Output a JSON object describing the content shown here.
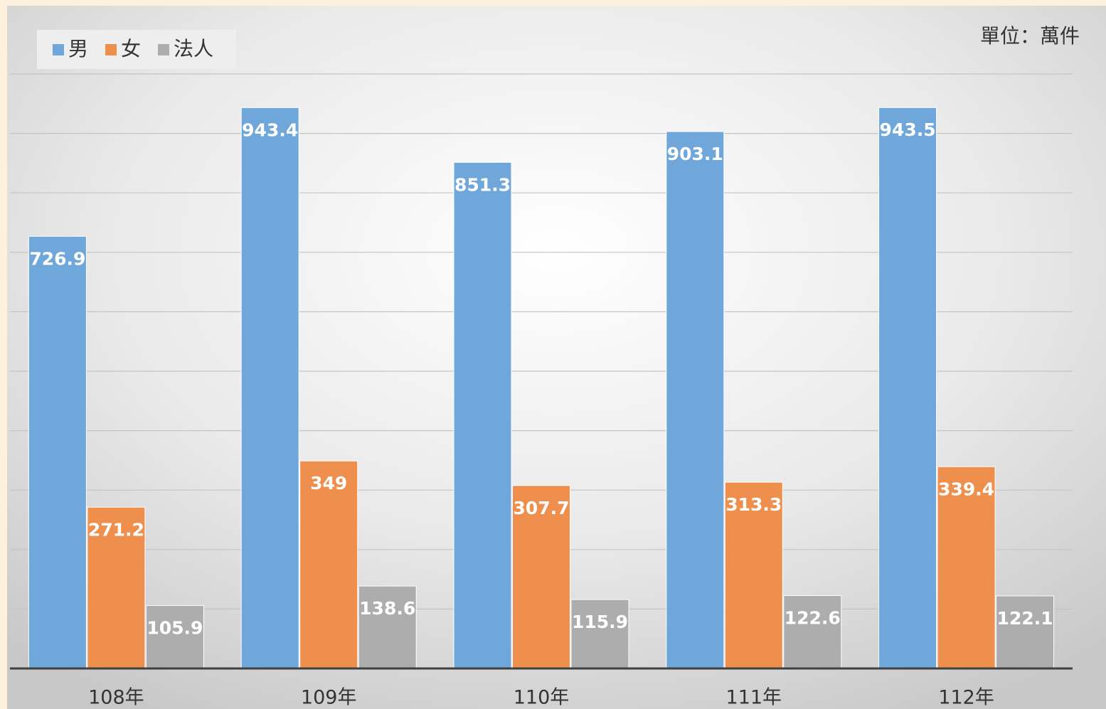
{
  "chart_data": {
    "type": "bar",
    "unit_note": "單位：萬件",
    "categories": [
      "108年",
      "109年",
      "110年",
      "111年",
      "112年"
    ],
    "series": [
      {
        "name": "男",
        "color": "#6fa7db",
        "values": [
          726.9,
          943.4,
          851.3,
          903.1,
          943.5
        ]
      },
      {
        "name": "女",
        "color": "#ee8f4d",
        "values": [
          271.2,
          349,
          307.7,
          313.3,
          339.4
        ]
      },
      {
        "name": "法人",
        "color": "#adadad",
        "values": [
          105.9,
          138.6,
          115.9,
          122.6,
          122.1
        ]
      }
    ],
    "ylim": [
      0,
      1000
    ],
    "yticks": [
      0,
      100,
      200,
      300,
      400,
      500,
      600,
      700,
      800,
      900,
      1000
    ],
    "ytick_labels": false,
    "grid": true,
    "legend": "top-left"
  }
}
